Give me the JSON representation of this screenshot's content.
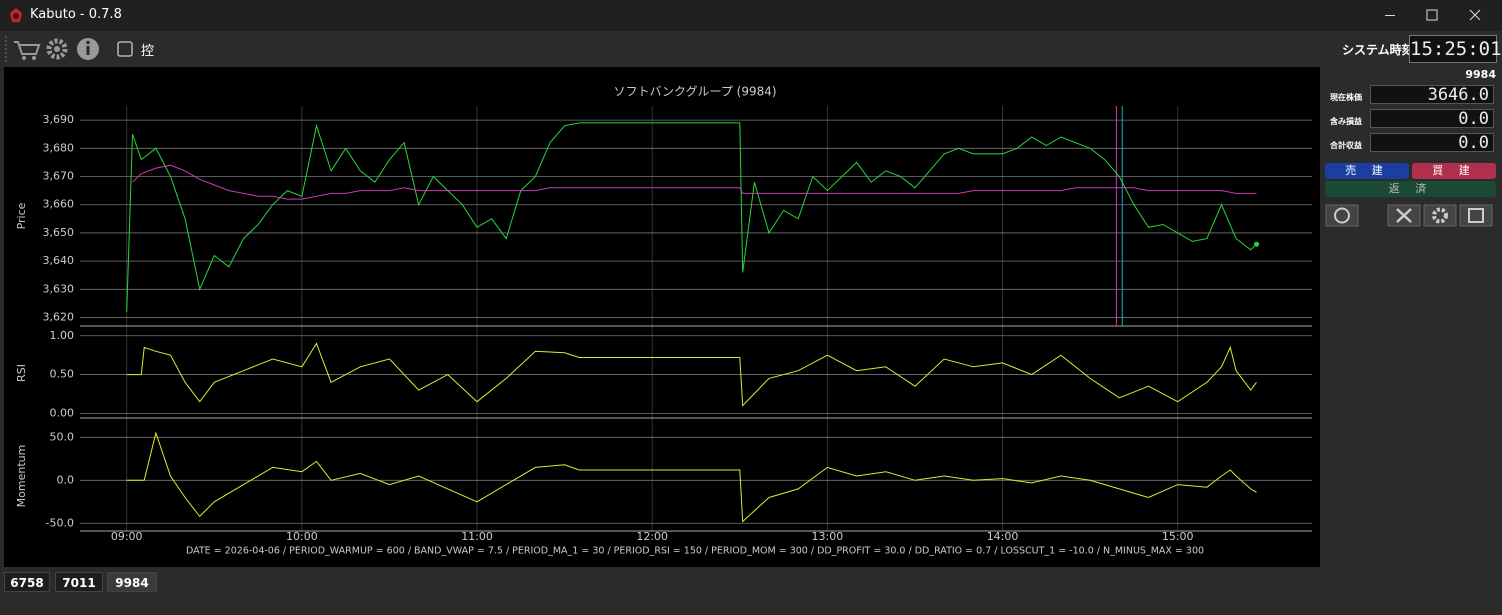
{
  "window": {
    "title": "Kabuto - 0.7.8"
  },
  "toolbar": {
    "checkbox_label": "控",
    "clock_label": "システム時刻",
    "clock": "15:25:01"
  },
  "side_panel": {
    "code": "9984",
    "fields": [
      {
        "label": "現在株価",
        "value": "3646.0"
      },
      {
        "label": "含み損益",
        "value": "0.0"
      },
      {
        "label": "合計収益",
        "value": "0.0"
      }
    ],
    "sell": "売 建",
    "buy": "買 建",
    "repay": "返 済"
  },
  "tabs": [
    "6758",
    "7011",
    "9984"
  ],
  "chart_data": [
    {
      "type": "line",
      "title": "ソフトバンクグループ (9984)",
      "ylabel": "Price",
      "grid": true,
      "xlim": [
        "08:44",
        "15:46"
      ],
      "ylim": [
        3617,
        3695
      ],
      "yticks": [
        {
          "value": 3620,
          "label": "3,620"
        },
        {
          "value": 3630,
          "label": "3,630"
        },
        {
          "value": 3640,
          "label": "3,640"
        },
        {
          "value": 3650,
          "label": "3,650"
        },
        {
          "value": 3660,
          "label": "3,660"
        },
        {
          "value": 3670,
          "label": "3,670"
        },
        {
          "value": 3680,
          "label": "3,680"
        },
        {
          "value": 3690,
          "label": "3,690"
        }
      ],
      "x": [
        "09:00",
        "09:02",
        "09:05",
        "09:10",
        "09:15",
        "09:20",
        "09:25",
        "09:30",
        "09:35",
        "09:40",
        "09:45",
        "09:50",
        "09:55",
        "10:00",
        "10:05",
        "10:10",
        "10:15",
        "10:20",
        "10:25",
        "10:30",
        "10:35",
        "10:40",
        "10:45",
        "10:50",
        "10:55",
        "11:00",
        "11:05",
        "11:10",
        "11:15",
        "11:20",
        "11:25",
        "11:30",
        "11:35",
        "12:30",
        "12:31",
        "12:35",
        "12:40",
        "12:45",
        "12:50",
        "12:55",
        "13:00",
        "13:05",
        "13:10",
        "13:15",
        "13:20",
        "13:25",
        "13:30",
        "13:35",
        "13:40",
        "13:45",
        "13:50",
        "14:00",
        "14:05",
        "14:10",
        "14:15",
        "14:20",
        "14:25",
        "14:30",
        "14:35",
        "14:40",
        "14:45",
        "14:50",
        "14:55",
        "15:00",
        "15:05",
        "15:10",
        "15:15",
        "15:20",
        "15:25",
        "15:27"
      ],
      "series": [
        {
          "color": "#27d63a",
          "end_dot": true,
          "values": [
            3622,
            3685,
            3676,
            3680,
            3670,
            3655,
            3630,
            3642,
            3638,
            3648,
            3653,
            3660,
            3665,
            3663,
            3688,
            3672,
            3680,
            3672,
            3668,
            3676,
            3682,
            3660,
            3670,
            3665,
            3660,
            3652,
            3655,
            3648,
            3665,
            3670,
            3682,
            3688,
            3689,
            3689,
            3636,
            3668,
            3650,
            3658,
            3655,
            3670,
            3665,
            3670,
            3675,
            3668,
            3672,
            3670,
            3666,
            3672,
            3678,
            3680,
            3678,
            3678,
            3680,
            3684,
            3681,
            3684,
            3682,
            3680,
            3676,
            3670,
            3660,
            3652,
            3653,
            3650,
            3647,
            3648,
            3660,
            3648,
            3644,
            3646
          ]
        },
        {
          "color": "#c83cb4",
          "values": [
            null,
            3668,
            3671,
            3673,
            3674,
            3672,
            3669,
            3667,
            3665,
            3664,
            3663,
            3663,
            3662,
            3662,
            3663,
            3664,
            3664,
            3665,
            3665,
            3665,
            3666,
            3665,
            3665,
            3665,
            3665,
            3665,
            3665,
            3665,
            3665,
            3665,
            3666,
            3666,
            3666,
            3666,
            3664,
            3664,
            3664,
            3664,
            3664,
            3664,
            3664,
            3664,
            3664,
            3664,
            3664,
            3664,
            3664,
            3664,
            3664,
            3664,
            3665,
            3665,
            3665,
            3665,
            3665,
            3665,
            3666,
            3666,
            3666,
            3666,
            3666,
            3665,
            3665,
            3665,
            3665,
            3665,
            3665,
            3664,
            3664,
            3664
          ]
        }
      ],
      "markers": [
        {
          "x": "14:39",
          "color": "#c83cb4"
        },
        {
          "x": "14:41",
          "color": "#2aa6c8"
        }
      ]
    },
    {
      "type": "line",
      "ylabel": "RSI",
      "grid": true,
      "xlim": [
        "08:44",
        "15:46"
      ],
      "ylim": [
        -0.06,
        1.1
      ],
      "yticks": [
        {
          "value": 0,
          "label": "0.00"
        },
        {
          "value": 0.5,
          "label": "0.50"
        },
        {
          "value": 1,
          "label": "1.00"
        }
      ],
      "x": [
        "09:00",
        "09:05",
        "09:06",
        "09:10",
        "09:15",
        "09:20",
        "09:25",
        "09:30",
        "09:40",
        "09:50",
        "10:00",
        "10:05",
        "10:10",
        "10:20",
        "10:30",
        "10:40",
        "10:50",
        "11:00",
        "11:10",
        "11:20",
        "11:30",
        "11:35",
        "12:30",
        "12:31",
        "12:40",
        "12:50",
        "13:00",
        "13:10",
        "13:20",
        "13:30",
        "13:40",
        "13:50",
        "14:00",
        "14:10",
        "14:20",
        "14:30",
        "14:40",
        "14:50",
        "15:00",
        "15:10",
        "15:15",
        "15:18",
        "15:20",
        "15:25",
        "15:27"
      ],
      "series": [
        {
          "color": "#e6e632",
          "values": [
            0.5,
            0.5,
            0.85,
            0.8,
            0.75,
            0.4,
            0.15,
            0.4,
            0.55,
            0.7,
            0.6,
            0.9,
            0.4,
            0.6,
            0.7,
            0.3,
            0.5,
            0.15,
            0.45,
            0.8,
            0.78,
            0.72,
            0.72,
            0.1,
            0.45,
            0.55,
            0.75,
            0.55,
            0.6,
            0.35,
            0.7,
            0.6,
            0.65,
            0.5,
            0.75,
            0.45,
            0.2,
            0.35,
            0.15,
            0.4,
            0.6,
            0.85,
            0.55,
            0.3,
            0.4
          ]
        }
      ]
    },
    {
      "type": "line",
      "ylabel": "Momentum",
      "grid": true,
      "xlim": [
        "08:44",
        "15:46"
      ],
      "ylim": [
        -59,
        69
      ],
      "yticks": [
        {
          "value": -50,
          "label": "-50.0"
        },
        {
          "value": 0,
          "label": "0.0"
        },
        {
          "value": 50,
          "label": "50.0"
        }
      ],
      "xticks": [
        "09:00",
        "10:00",
        "11:00",
        "12:00",
        "13:00",
        "14:00",
        "15:00"
      ],
      "x": [
        "09:00",
        "09:05",
        "09:06",
        "09:10",
        "09:15",
        "09:20",
        "09:25",
        "09:30",
        "09:40",
        "09:50",
        "10:00",
        "10:05",
        "10:10",
        "10:20",
        "10:30",
        "10:40",
        "10:50",
        "11:00",
        "11:10",
        "11:20",
        "11:30",
        "11:35",
        "12:30",
        "12:31",
        "12:40",
        "12:50",
        "13:00",
        "13:10",
        "13:20",
        "13:30",
        "13:40",
        "13:50",
        "14:00",
        "14:10",
        "14:20",
        "14:30",
        "14:40",
        "14:50",
        "15:00",
        "15:10",
        "15:15",
        "15:18",
        "15:20",
        "15:25",
        "15:27"
      ],
      "series": [
        {
          "color": "#e6e632",
          "values": [
            0,
            0,
            0,
            55,
            5,
            -20,
            -42,
            -25,
            -5,
            15,
            10,
            22,
            0,
            8,
            -5,
            5,
            -10,
            -25,
            -5,
            15,
            18,
            12,
            12,
            -48,
            -20,
            -10,
            15,
            5,
            10,
            0,
            5,
            0,
            2,
            -3,
            5,
            0,
            -10,
            -20,
            -5,
            -8,
            5,
            12,
            5,
            -10,
            -14
          ]
        }
      ],
      "annotation": "DATE = 2026-04-06 / PERIOD_WARMUP = 600 / BAND_VWAP = 7.5 / PERIOD_MA_1 = 30 / PERIOD_RSI = 150 / PERIOD_MOM = 300 / DD_PROFIT = 30.0 / DD_RATIO = 0.7 / LOSSCUT_1 = -10.0 / N_MINUS_MAX = 300"
    }
  ]
}
